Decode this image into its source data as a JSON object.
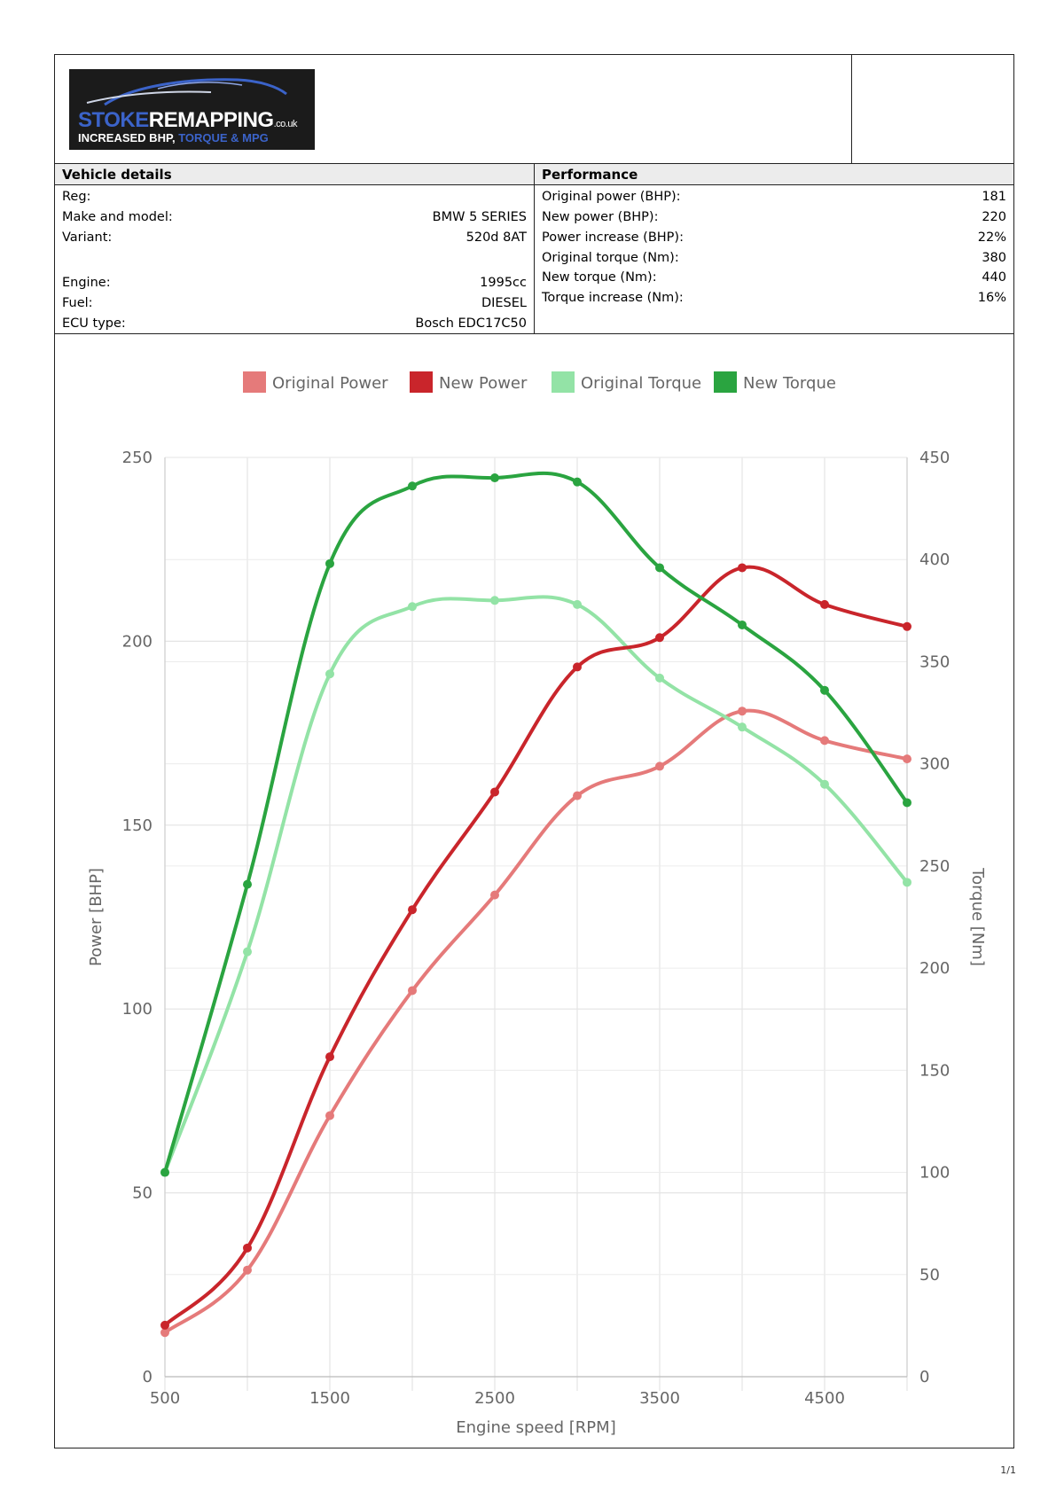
{
  "logo": {
    "brand_blue": "STOKE",
    "brand_white": "REMAPPING",
    "brand_suffix": ".co.uk",
    "tagline_white": "INCREASED BHP, ",
    "tagline_blue": "TORQUE & MPG"
  },
  "vehicle": {
    "heading": "Vehicle details",
    "rows": [
      {
        "label": "Reg:",
        "value": ""
      },
      {
        "label": "Make and model:",
        "value": "BMW 5 SERIES"
      },
      {
        "label": "Variant:",
        "value": "520d 8AT"
      },
      {
        "label": "Engine:",
        "value": "1995cc"
      },
      {
        "label": "Fuel:",
        "value": "DIESEL"
      },
      {
        "label": "ECU type:",
        "value": "Bosch EDC17C50"
      }
    ]
  },
  "performance": {
    "heading": "Performance",
    "rows": [
      {
        "label": "Original power (BHP):",
        "value": "181"
      },
      {
        "label": "New power (BHP):",
        "value": "220"
      },
      {
        "label": "Power increase (BHP):",
        "value": "22%"
      },
      {
        "label": "Original torque (Nm):",
        "value": "380"
      },
      {
        "label": "New torque (Nm):",
        "value": "440"
      },
      {
        "label": "Torque increase (Nm):",
        "value": "16%"
      }
    ]
  },
  "chart_data": {
    "type": "line",
    "xlabel": "Engine speed [RPM]",
    "ylabel": "Power [BHP]",
    "y2label": "Torque [Nm]",
    "xlim": [
      500,
      5000
    ],
    "ylim": [
      0,
      250
    ],
    "y2lim": [
      0,
      450
    ],
    "xticks": [
      500,
      1500,
      2500,
      3500,
      4500
    ],
    "yticks": [
      0,
      50,
      100,
      150,
      200,
      250
    ],
    "y2ticks": [
      0,
      50,
      100,
      150,
      200,
      250,
      300,
      350,
      400,
      450
    ],
    "grid": true,
    "legend_position": "top",
    "x": [
      500,
      1000,
      1500,
      2000,
      2500,
      3000,
      3500,
      4000,
      4500,
      5000
    ],
    "series": [
      {
        "name": "Original Power",
        "axis": "left",
        "color": "#e57a7a",
        "values": [
          12,
          29,
          71,
          105,
          131,
          158,
          166,
          181,
          173,
          168
        ]
      },
      {
        "name": "New Power",
        "axis": "left",
        "color": "#c9252b",
        "values": [
          14,
          35,
          87,
          127,
          159,
          193,
          201,
          220,
          210,
          204
        ]
      },
      {
        "name": "Original Torque",
        "axis": "right",
        "color": "#93e3a6",
        "values": [
          100,
          208,
          344,
          377,
          380,
          378,
          342,
          318,
          290,
          242
        ]
      },
      {
        "name": "New Torque",
        "axis": "right",
        "color": "#2aa440",
        "values": [
          100,
          241,
          398,
          436,
          440,
          438,
          396,
          368,
          336,
          281
        ]
      }
    ]
  },
  "page_number": "1/1"
}
